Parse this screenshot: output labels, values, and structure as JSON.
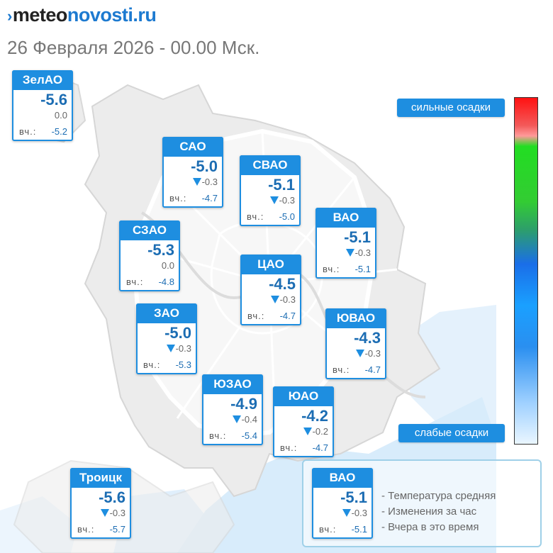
{
  "header": {
    "logo_prefix": "meteo",
    "logo_suffix": "novosti.ru",
    "subtitle": "26 Февраля 2026 - 00.00 Мск."
  },
  "colors": {
    "card_blue": "#1e8ee0",
    "temp_blue": "#1c6db3",
    "precip_blue": "#b9dcf7"
  },
  "yesterday_label": "вч.:",
  "districts": [
    {
      "name": "ЗелАО",
      "temp": "-5.6",
      "change": "0.0",
      "trend": "none",
      "yesterday": "-5.2"
    },
    {
      "name": "САО",
      "temp": "-5.0",
      "change": "-0.3",
      "trend": "down",
      "yesterday": "-4.7"
    },
    {
      "name": "СВАО",
      "temp": "-5.1",
      "change": "-0.3",
      "trend": "down",
      "yesterday": "-5.0"
    },
    {
      "name": "ВАО",
      "temp": "-5.1",
      "change": "-0.3",
      "trend": "down",
      "yesterday": "-5.1"
    },
    {
      "name": "СЗАО",
      "temp": "-5.3",
      "change": "0.0",
      "trend": "none",
      "yesterday": "-4.8"
    },
    {
      "name": "ЦАО",
      "temp": "-4.5",
      "change": "-0.3",
      "trend": "down",
      "yesterday": "-4.7"
    },
    {
      "name": "ЗАО",
      "temp": "-5.0",
      "change": "-0.3",
      "trend": "down",
      "yesterday": "-5.3"
    },
    {
      "name": "ЮВАО",
      "temp": "-4.3",
      "change": "-0.3",
      "trend": "down",
      "yesterday": "-4.7"
    },
    {
      "name": "ЮЗАО",
      "temp": "-4.9",
      "change": "-0.4",
      "trend": "down",
      "yesterday": "-5.4"
    },
    {
      "name": "ЮАО",
      "temp": "-4.2",
      "change": "-0.2",
      "trend": "down",
      "yesterday": "-4.7"
    },
    {
      "name": "Троицк",
      "temp": "-5.6",
      "change": "-0.3",
      "trend": "down",
      "yesterday": "-5.7"
    }
  ],
  "precip_scale": {
    "high_label": "сильные осадки",
    "low_label": "слабые осадки"
  },
  "legend": {
    "sample": {
      "name": "ВАО",
      "temp": "-5.1",
      "change": "-0.3",
      "trend": "down",
      "yesterday": "-5.1"
    },
    "line1": "- Температура средняя",
    "line2": "- Изменения за час",
    "line3": "- Вчера в это время"
  }
}
